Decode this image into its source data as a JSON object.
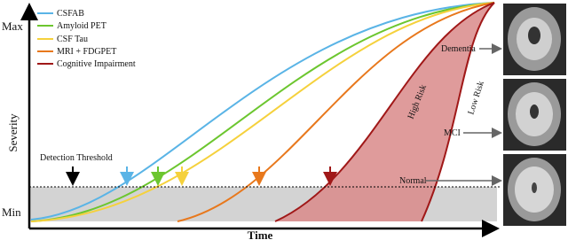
{
  "axes": {
    "y_max": "Max",
    "y_min": "Min",
    "y_label": "Severity",
    "x_label": "Time"
  },
  "legend": [
    "CSFAB",
    "Amyloid PET",
    "CSF Tau",
    "MRI + FDGPET",
    "Cognitive Impairment"
  ],
  "annotations": {
    "threshold": "Detection Threshold",
    "high_risk": "High Risk",
    "low_risk": "Low Risk"
  },
  "stages": [
    "Dementia",
    "MCI",
    "Normal"
  ]
}
